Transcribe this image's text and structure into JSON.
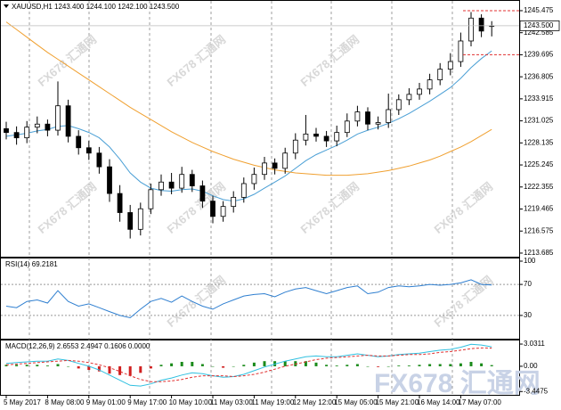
{
  "chart_data": [
    {
      "type": "candlestick",
      "title": "XAUUSD,H1 1243.400 1244.100 1242.100 1243.500",
      "watermark": "FX678 汇通网",
      "categories": [
        "5 May 2017",
        null,
        null,
        null,
        "8 May 08:00",
        null,
        null,
        null,
        "9 May 01:00",
        null,
        null,
        null,
        "9 May 17:00",
        null,
        null,
        null,
        "10 May 10:00",
        null,
        null,
        null,
        "11 May 03:00",
        null,
        null,
        null,
        "11 May 19:00",
        null,
        null,
        null,
        "12 May 12:00",
        null,
        null,
        null,
        "15 May 05:00",
        null,
        null,
        null,
        "15 May 21:00",
        null,
        null,
        null,
        "16 May 14:00",
        null,
        null,
        null,
        "17 May 07:00",
        null,
        null,
        null
      ],
      "open": [
        1230.0,
        1229.5,
        1228.8,
        1230.2,
        1230.6,
        1229.8,
        1233.0,
        1229.0,
        1227.5,
        1226.8,
        1225.0,
        1221.5,
        1219.0,
        1216.8,
        1219.5,
        1222.0,
        1223.0,
        1222.2,
        1224.0,
        1222.5,
        1220.5,
        1218.5,
        1219.8,
        1221.0,
        1222.8,
        1224.0,
        1225.5,
        1224.8,
        1226.8,
        1228.5,
        1229.3,
        1229.0,
        1228.4,
        1229.5,
        1231.0,
        1232.2,
        1230.6,
        1230.8,
        1232.5,
        1233.8,
        1234.5,
        1235.2,
        1236.4,
        1237.8,
        1238.8,
        1241.5,
        1244.5,
        1243.4
      ],
      "high": [
        1230.9,
        1230.3,
        1231.0,
        1231.6,
        1231.2,
        1236.2,
        1233.8,
        1229.8,
        1228.4,
        1227.6,
        1226.0,
        1222.6,
        1220.0,
        1220.3,
        1222.8,
        1224.0,
        1224.2,
        1225.0,
        1224.6,
        1223.2,
        1221.2,
        1220.5,
        1221.8,
        1223.6,
        1224.9,
        1226.3,
        1226.1,
        1227.5,
        1229.4,
        1231.8,
        1230.1,
        1229.7,
        1230.4,
        1232.0,
        1233.0,
        1232.8,
        1231.6,
        1234.6,
        1234.5,
        1235.3,
        1236.0,
        1237.2,
        1238.6,
        1239.9,
        1242.6,
        1245.3,
        1245.0,
        1244.1
      ],
      "low": [
        1228.6,
        1227.9,
        1228.1,
        1229.4,
        1229.0,
        1229.1,
        1228.2,
        1226.6,
        1225.9,
        1224.1,
        1220.4,
        1217.8,
        1215.6,
        1216.0,
        1218.8,
        1221.2,
        1221.4,
        1221.6,
        1221.7,
        1219.6,
        1217.6,
        1217.8,
        1219.0,
        1220.3,
        1222.0,
        1223.3,
        1224.0,
        1224.1,
        1226.0,
        1227.8,
        1228.3,
        1227.6,
        1227.7,
        1228.9,
        1230.3,
        1229.8,
        1229.9,
        1230.1,
        1231.8,
        1233.1,
        1233.8,
        1234.5,
        1235.7,
        1237.0,
        1238.1,
        1240.8,
        1242.0,
        1242.1
      ],
      "close": [
        1229.5,
        1228.8,
        1230.2,
        1230.6,
        1229.8,
        1233.0,
        1229.0,
        1227.5,
        1226.8,
        1225.0,
        1221.5,
        1219.0,
        1216.8,
        1219.5,
        1222.0,
        1223.0,
        1222.2,
        1224.0,
        1222.5,
        1220.5,
        1218.5,
        1219.8,
        1221.0,
        1222.8,
        1224.0,
        1225.5,
        1224.8,
        1226.8,
        1228.5,
        1229.3,
        1229.0,
        1228.4,
        1229.5,
        1231.0,
        1232.2,
        1230.6,
        1230.8,
        1232.5,
        1233.8,
        1234.5,
        1235.2,
        1236.4,
        1237.8,
        1238.8,
        1241.5,
        1244.5,
        1242.8,
        1243.5
      ],
      "series": [
        {
          "color": "#4a9fd5",
          "values": [
            1229.0,
            1229.2,
            1229.4,
            1229.7,
            1229.9,
            1230.3,
            1230.4,
            1230.0,
            1229.5,
            1228.8,
            1227.6,
            1226.0,
            1224.2,
            1223.0,
            1222.2,
            1221.9,
            1221.8,
            1222.0,
            1222.1,
            1221.8,
            1221.2,
            1220.7,
            1220.5,
            1220.8,
            1221.4,
            1222.2,
            1223.0,
            1223.8,
            1224.8,
            1225.8,
            1226.6,
            1227.2,
            1227.8,
            1228.5,
            1229.3,
            1229.8,
            1230.2,
            1230.7,
            1231.3,
            1232.0,
            1232.8,
            1233.6,
            1234.5,
            1235.4,
            1236.6,
            1238.0,
            1239.2,
            1240.2
          ]
        },
        {
          "color": "#f0a030",
          "values": [
            1244.0,
            1243.0,
            1242.0,
            1241.0,
            1240.0,
            1239.1,
            1238.2,
            1237.3,
            1236.4,
            1235.5,
            1234.6,
            1233.7,
            1232.8,
            1232.0,
            1231.2,
            1230.4,
            1229.6,
            1228.9,
            1228.2,
            1227.6,
            1227.0,
            1226.5,
            1226.0,
            1225.6,
            1225.2,
            1224.9,
            1224.6,
            1224.4,
            1224.2,
            1224.1,
            1224.0,
            1223.9,
            1223.9,
            1223.9,
            1224.0,
            1224.1,
            1224.3,
            1224.5,
            1224.8,
            1225.1,
            1225.5,
            1225.9,
            1226.4,
            1227.0,
            1227.6,
            1228.3,
            1229.1,
            1229.9
          ]
        }
      ],
      "up_color": "#ffffff",
      "down_color": "#000000",
      "ylim": [
        1213.33,
        1246.64
      ],
      "yticks": [
        1245.475,
        1242.585,
        1239.695,
        1236.805,
        1233.915,
        1231.025,
        1228.135,
        1225.245,
        1222.355,
        1219.465,
        1216.575,
        1213.685
      ],
      "last_price": {
        "value": 1243.5,
        "label": "1243.500"
      },
      "alert_levels": [
        1245.475,
        1239.695
      ]
    },
    {
      "type": "line",
      "title": "RSI(14) 69.2181",
      "series": [
        {
          "color": "#2f7fd0",
          "values": [
            42,
            40,
            48,
            50,
            46,
            62,
            48,
            42,
            45,
            40,
            35,
            30,
            27,
            38,
            48,
            52,
            47,
            55,
            48,
            42,
            38,
            45,
            50,
            55,
            57,
            58,
            54,
            60,
            64,
            66,
            62,
            58,
            62,
            66,
            68,
            58,
            60,
            66,
            68,
            67,
            68,
            70,
            69,
            70,
            72,
            76,
            70,
            69.2
          ]
        }
      ],
      "ylim": [
        0,
        100
      ],
      "yticks": [
        100,
        70,
        30
      ],
      "levels": [
        70,
        30
      ]
    },
    {
      "type": "macd",
      "title": "MACD(12,26,9) 2.6553 2.4947 0.1606 0.0000",
      "histogram": [
        0.2,
        0.2,
        0.2,
        0.2,
        0.1,
        0.3,
        0.0,
        -0.3,
        -0.5,
        -0.7,
        -1.0,
        -1.2,
        -1.3,
        -0.9,
        -0.3,
        0.2,
        0.4,
        0.6,
        0.6,
        0.3,
        0.0,
        -0.2,
        0.0,
        0.2,
        0.5,
        0.7,
        0.7,
        0.7,
        0.7,
        0.7,
        0.5,
        0.2,
        0.1,
        0.2,
        0.3,
        0.0,
        -0.1,
        0.0,
        0.1,
        0.1,
        0.2,
        0.3,
        0.3,
        0.3,
        0.4,
        0.6,
        0.4,
        0.16
      ],
      "positive_color": "#1a8a1a",
      "negative_color": "#d02020",
      "series": [
        {
          "color": "#30c0e0",
          "values": [
            0.4,
            0.5,
            0.6,
            0.7,
            0.7,
            1.0,
            0.8,
            0.4,
            0.0,
            -0.5,
            -1.2,
            -1.9,
            -2.6,
            -2.7,
            -2.4,
            -1.9,
            -1.6,
            -1.2,
            -0.9,
            -1.0,
            -1.3,
            -1.5,
            -1.4,
            -1.1,
            -0.6,
            -0.1,
            0.3,
            0.7,
            1.0,
            1.3,
            1.4,
            1.3,
            1.3,
            1.5,
            1.7,
            1.5,
            1.3,
            1.4,
            1.6,
            1.7,
            1.8,
            2.0,
            2.2,
            2.3,
            2.6,
            3.0,
            2.9,
            2.66
          ]
        },
        {
          "color": "#e03030",
          "dashed": true,
          "values": [
            0.2,
            0.3,
            0.4,
            0.5,
            0.6,
            0.7,
            0.8,
            0.7,
            0.5,
            0.2,
            -0.2,
            -0.7,
            -1.3,
            -1.8,
            -2.1,
            -2.1,
            -2.0,
            -1.8,
            -1.5,
            -1.3,
            -1.3,
            -1.3,
            -1.4,
            -1.3,
            -1.1,
            -0.8,
            -0.4,
            0.0,
            0.3,
            0.6,
            0.9,
            1.1,
            1.2,
            1.3,
            1.4,
            1.5,
            1.4,
            1.4,
            1.5,
            1.6,
            1.6,
            1.7,
            1.9,
            2.0,
            2.2,
            2.4,
            2.5,
            2.49
          ]
        }
      ],
      "ylim": [
        -3.9,
        3.4
      ],
      "yticks": [
        3.0311,
        {
          "value": 0,
          "label": "0.00"
        },
        -3.4475
      ]
    }
  ]
}
